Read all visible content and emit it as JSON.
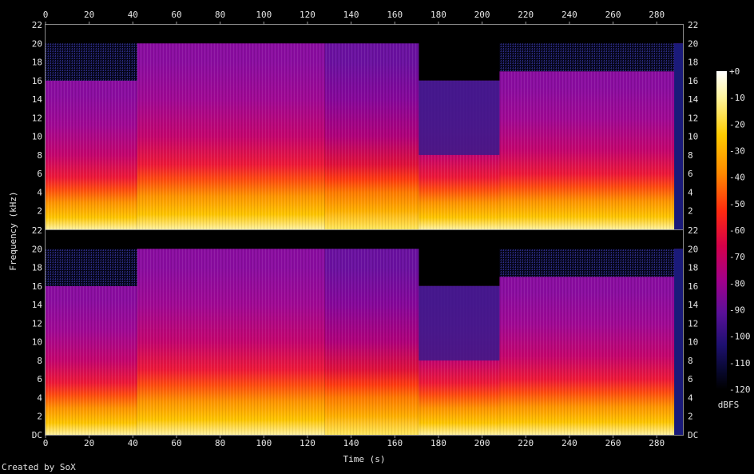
{
  "credit": "Created by SoX",
  "chart_data": {
    "type": "heatmap",
    "subtype": "spectrogram",
    "title": "",
    "xlabel": "Time (s)",
    "ylabel": "Frequency (kHz)",
    "xlim": [
      0,
      292
    ],
    "ylim": [
      0,
      22
    ],
    "x_ticks": [
      "0",
      "20",
      "40",
      "60",
      "80",
      "100",
      "120",
      "140",
      "160",
      "180",
      "200",
      "220",
      "240",
      "260",
      "280"
    ],
    "y_ticks": [
      "DC",
      "2",
      "4",
      "6",
      "8",
      "10",
      "12",
      "14",
      "16",
      "18",
      "20",
      "22"
    ],
    "colorbar": {
      "label": "dBFS",
      "ticks": [
        "+0",
        "-10",
        "-20",
        "-30",
        "-40",
        "-50",
        "-60",
        "-70",
        "-80",
        "-90",
        "-100",
        "-110",
        "-120"
      ],
      "range": [
        -120,
        0
      ]
    },
    "channels": [
      "left",
      "right"
    ],
    "segments": [
      {
        "start_s": 0,
        "end_s": 42,
        "cutoff_khz": 16,
        "noise_top_khz": 20,
        "character": "lowpass-16k"
      },
      {
        "start_s": 42,
        "end_s": 128,
        "cutoff_khz": 20,
        "character": "full-band"
      },
      {
        "start_s": 128,
        "end_s": 171,
        "cutoff_khz": 20,
        "character": "full-band-sparse-bass"
      },
      {
        "start_s": 171,
        "end_s": 208,
        "cutoff_khz": 16,
        "character": "lowpass-16k-clean"
      },
      {
        "start_s": 208,
        "end_s": 288,
        "cutoff_khz": 17,
        "noise_top_khz": 20,
        "character": "lowpass-17k"
      },
      {
        "start_s": 288,
        "end_s": 292,
        "cutoff_khz": 20,
        "character": "fade-out"
      }
    ],
    "grid": false,
    "colors": {
      "background": "#000000",
      "axis": "#9a9a9a",
      "text": "#e6e6e6"
    }
  }
}
